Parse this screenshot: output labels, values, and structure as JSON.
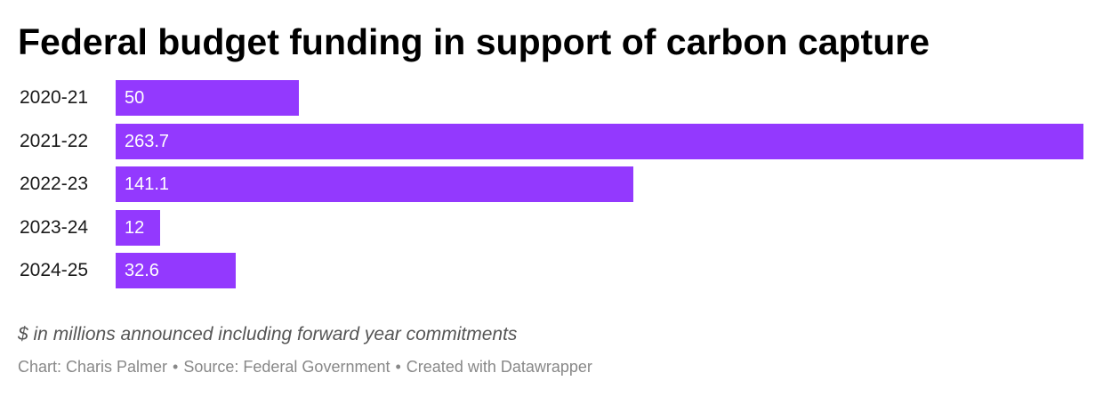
{
  "chart_data": {
    "type": "bar",
    "orientation": "horizontal",
    "title": "Federal budget funding in support of carbon capture",
    "categories": [
      "2020-21",
      "2021-22",
      "2022-23",
      "2023-24",
      "2024-25"
    ],
    "values": [
      50,
      263.7,
      141.1,
      12,
      32.6
    ],
    "value_labels": [
      "50",
      "263.7",
      "141.1",
      "12",
      "32.6"
    ],
    "xlim": [
      0,
      263.7
    ],
    "grid": false,
    "legend": "none",
    "bar_color": "#9339fe",
    "notes": "$ in millions announced including forward year commitments"
  },
  "credits": {
    "chart": "Chart: Charis Palmer",
    "source": "Source: Federal Government",
    "created": "Created with Datawrapper",
    "separator": "•"
  }
}
